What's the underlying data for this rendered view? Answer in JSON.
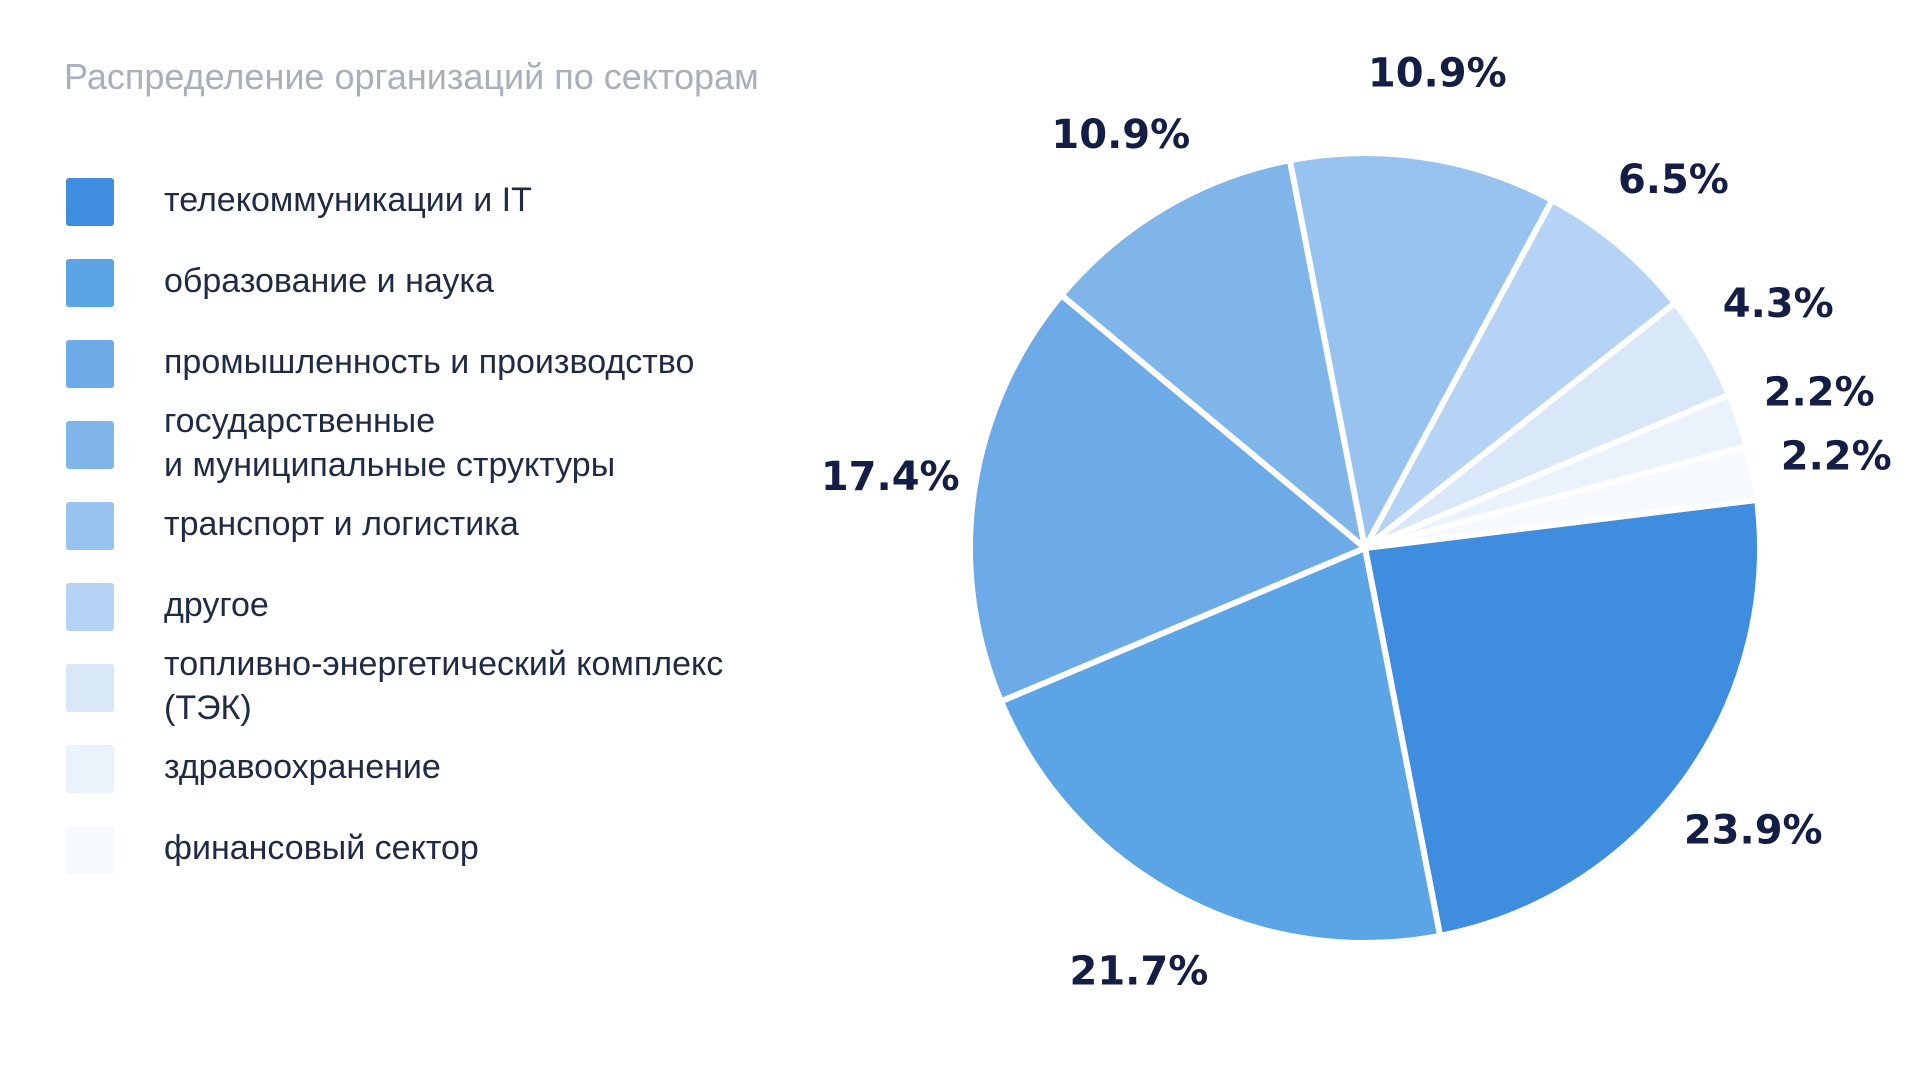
{
  "chart_data": {
    "type": "pie",
    "title": "Распределение организаций по секторам",
    "slices": [
      {
        "label": "телекоммуникации и IT",
        "value": 23.9,
        "value_label": "23.9%",
        "color": "#3f8ddf"
      },
      {
        "label": "образование и наука",
        "value": 21.7,
        "value_label": "21.7%",
        "color": "#5ba4e6"
      },
      {
        "label": "промышленность и производство",
        "value": 17.4,
        "value_label": "17.4%",
        "color": "#6caae8"
      },
      {
        "label": "государственные\nи муниципальные структуры",
        "value": 10.9,
        "value_label": "10.9%",
        "color": "#80b5ea"
      },
      {
        "label": "транспорт и логистика",
        "value": 10.9,
        "value_label": "10.9%",
        "color": "#98c3f0"
      },
      {
        "label": "другое",
        "value": 6.5,
        "value_label": "6.5%",
        "color": "#b5d3f5"
      },
      {
        "label": "топливно-энергетический комплекс\n(ТЭК)",
        "value": 4.3,
        "value_label": "4.3%",
        "color": "#d9e8f9"
      },
      {
        "label": "здравоохранение",
        "value": 2.2,
        "value_label": "2.2%",
        "color": "#eaf2fc"
      },
      {
        "label": "финансовый сектор",
        "value": 2.2,
        "value_label": "2.2%",
        "color": "#f6f9fe"
      }
    ],
    "legend_position": "left"
  }
}
